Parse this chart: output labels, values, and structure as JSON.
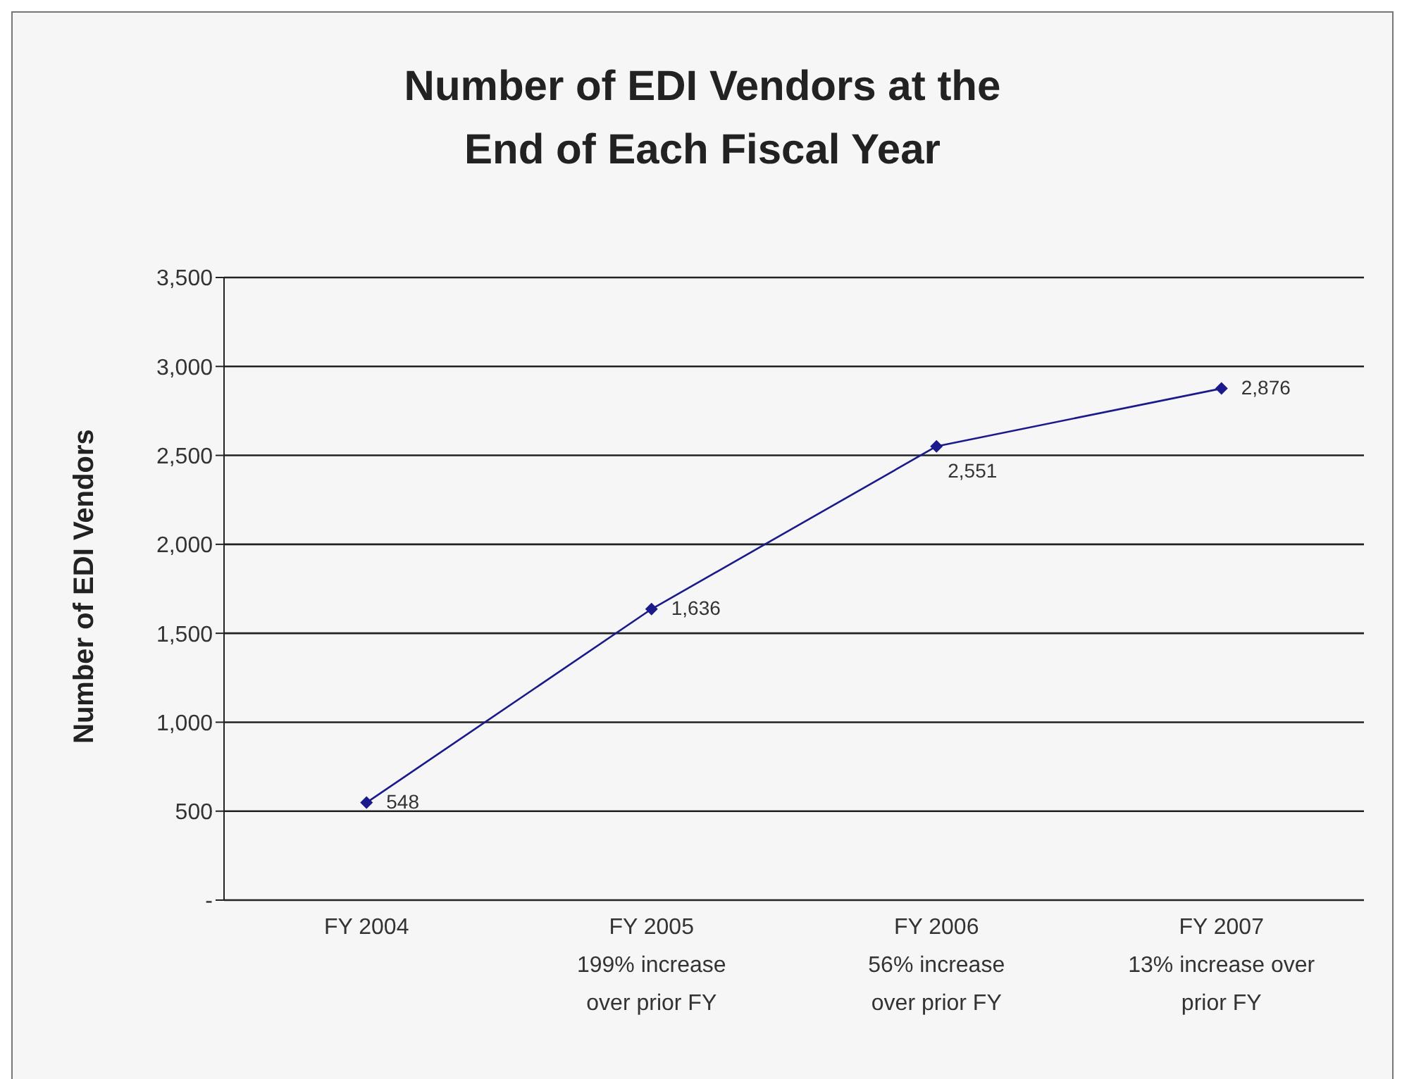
{
  "chart_data": {
    "type": "line",
    "title": "Number of EDI Vendors at the\nEnd of Each Fiscal Year",
    "ylabel": "Number of EDI Vendors",
    "categories": [
      "FY 2004",
      "FY 2005\n199% increase\nover prior FY",
      "FY 2006\n56% increase\nover prior FY",
      "FY 2007\n13% increase over\nprior FY"
    ],
    "series": [
      {
        "color": "#1a1a8c",
        "values": [
          548,
          1636,
          2551,
          2876
        ],
        "value_labels": [
          "548",
          "1,636",
          "2,551",
          "2,876"
        ]
      }
    ],
    "ylim": [
      0,
      3500
    ],
    "yticks": [
      {
        "value": 0,
        "label": "-"
      },
      {
        "value": 500,
        "label": "500"
      },
      {
        "value": 1000,
        "label": "1,000"
      },
      {
        "value": 1500,
        "label": "1,500"
      },
      {
        "value": 2000,
        "label": "2,000"
      },
      {
        "value": 2500,
        "label": "2,500"
      },
      {
        "value": 3000,
        "label": "3,000"
      },
      {
        "value": 3500,
        "label": "3,500"
      }
    ],
    "grid": "y",
    "marker": "diamond",
    "line_style": "solid",
    "legend": false
  }
}
